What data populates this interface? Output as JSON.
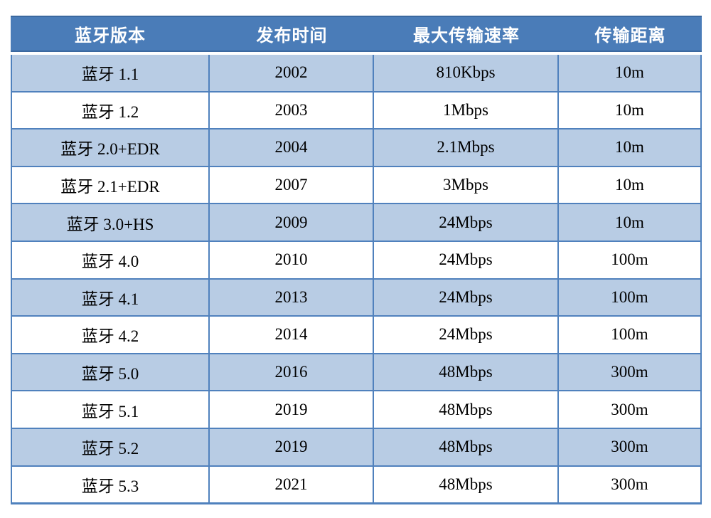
{
  "chart_data": {
    "type": "table",
    "title": "",
    "columns": [
      "蓝牙版本",
      "发布时间",
      "最大传输速率",
      "传输距离"
    ],
    "rows": [
      [
        "蓝牙 1.1",
        "2002",
        "810Kbps",
        "10m"
      ],
      [
        "蓝牙 1.2",
        "2003",
        "1Mbps",
        "10m"
      ],
      [
        "蓝牙 2.0+EDR",
        "2004",
        "2.1Mbps",
        "10m"
      ],
      [
        "蓝牙 2.1+EDR",
        "2007",
        "3Mbps",
        "10m"
      ],
      [
        "蓝牙 3.0+HS",
        "2009",
        "24Mbps",
        "10m"
      ],
      [
        "蓝牙 4.0",
        "2010",
        "24Mbps",
        "100m"
      ],
      [
        "蓝牙 4.1",
        "2013",
        "24Mbps",
        "100m"
      ],
      [
        "蓝牙 4.2",
        "2014",
        "24Mbps",
        "100m"
      ],
      [
        "蓝牙 5.0",
        "2016",
        "48Mbps",
        "300m"
      ],
      [
        "蓝牙 5.1",
        "2019",
        "48Mbps",
        "300m"
      ],
      [
        "蓝牙 5.2",
        "2019",
        "48Mbps",
        "300m"
      ],
      [
        "蓝牙 5.3",
        "2021",
        "48Mbps",
        "300m"
      ]
    ],
    "layout": {
      "grid": true,
      "alternating_row_shading": true
    }
  },
  "colors": {
    "header_bg": "#4a7cb8",
    "header_border": "#3b689f",
    "header_text": "#ffffff",
    "row_alt_bg": "#b8cce4",
    "row_bg": "#ffffff",
    "grid_border": "#5081bd",
    "outer_border": "#4f81bd",
    "body_text": "#000000"
  }
}
